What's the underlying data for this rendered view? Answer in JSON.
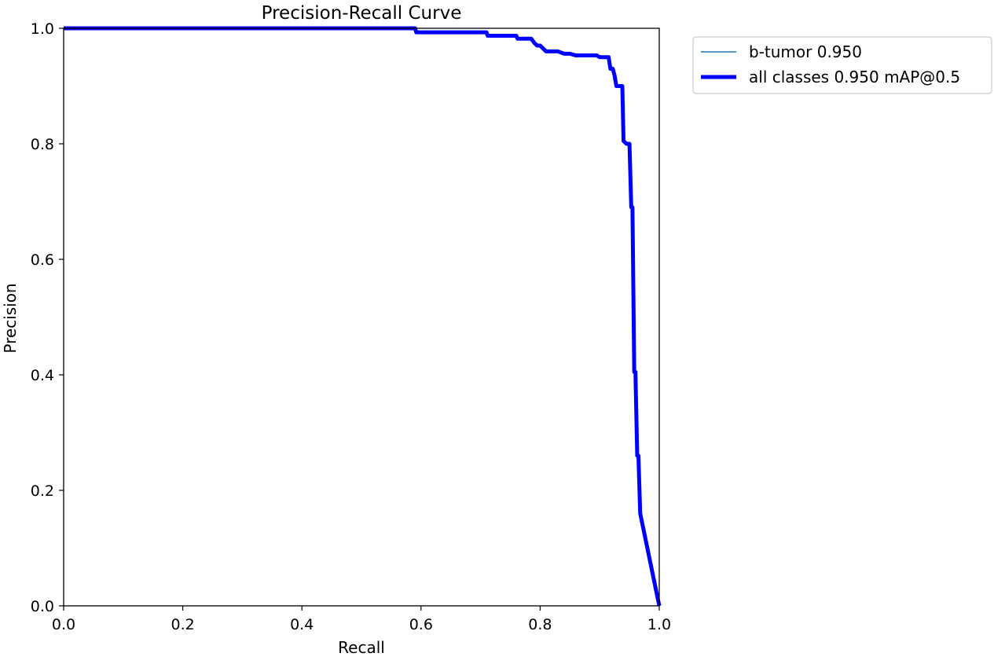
{
  "chart_data": {
    "type": "line",
    "title": "Precision-Recall Curve",
    "xlabel": "Recall",
    "ylabel": "Precision",
    "xlim": [
      0,
      1
    ],
    "ylim": [
      0,
      1
    ],
    "xticks": [
      "0.0",
      "0.2",
      "0.4",
      "0.6",
      "0.8",
      "1.0"
    ],
    "yticks": [
      "0.0",
      "0.2",
      "0.4",
      "0.6",
      "0.8",
      "1.0"
    ],
    "grid": false,
    "legend_position": "outside-top-right",
    "series": [
      {
        "name": "b-tumor 0.950",
        "color": "#1f77b4",
        "style": "thin",
        "x": [
          0,
          0.59,
          0.592,
          0.71,
          0.712,
          0.76,
          0.762,
          0.785,
          0.79,
          0.795,
          0.8,
          0.805,
          0.81,
          0.83,
          0.84,
          0.85,
          0.86,
          0.895,
          0.9,
          0.915,
          0.918,
          0.922,
          0.925,
          0.928,
          0.935,
          0.938,
          0.94,
          0.945,
          0.95,
          0.953,
          0.955,
          0.958,
          0.96,
          0.963,
          0.965,
          0.968,
          1.0
        ],
        "y": [
          1.0,
          1.0,
          0.993,
          0.993,
          0.987,
          0.987,
          0.982,
          0.982,
          0.975,
          0.97,
          0.97,
          0.965,
          0.96,
          0.96,
          0.956,
          0.956,
          0.953,
          0.953,
          0.95,
          0.95,
          0.93,
          0.93,
          0.918,
          0.9,
          0.9,
          0.9,
          0.805,
          0.8,
          0.8,
          0.69,
          0.69,
          0.405,
          0.405,
          0.26,
          0.26,
          0.16,
          0.0
        ]
      },
      {
        "name": "all classes 0.950 mAP@0.5",
        "color": "#0000ff",
        "style": "thick",
        "x": [
          0,
          0.59,
          0.592,
          0.71,
          0.712,
          0.76,
          0.762,
          0.785,
          0.79,
          0.795,
          0.8,
          0.805,
          0.81,
          0.83,
          0.84,
          0.85,
          0.86,
          0.895,
          0.9,
          0.915,
          0.918,
          0.922,
          0.925,
          0.928,
          0.935,
          0.938,
          0.94,
          0.945,
          0.95,
          0.953,
          0.955,
          0.958,
          0.96,
          0.963,
          0.965,
          0.968,
          1.0
        ],
        "y": [
          1.0,
          1.0,
          0.993,
          0.993,
          0.987,
          0.987,
          0.982,
          0.982,
          0.975,
          0.97,
          0.97,
          0.965,
          0.96,
          0.96,
          0.956,
          0.956,
          0.953,
          0.953,
          0.95,
          0.95,
          0.93,
          0.93,
          0.918,
          0.9,
          0.9,
          0.9,
          0.805,
          0.8,
          0.8,
          0.69,
          0.69,
          0.405,
          0.405,
          0.26,
          0.26,
          0.16,
          0.0
        ]
      }
    ]
  }
}
